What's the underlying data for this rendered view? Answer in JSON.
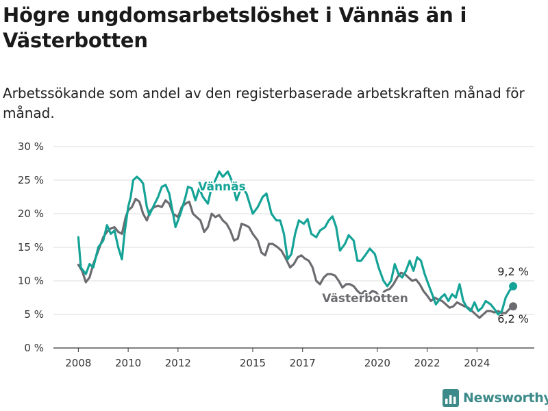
{
  "chart_data": {
    "type": "line",
    "title": "Högre ungdomsarbetslöshet i Vännäs än i Västerbotten",
    "subtitle": "Arbetssökande som andel av den registerbaserade arbetskraften månad för månad.",
    "xlabel": "",
    "ylabel": "",
    "ylim": [
      0,
      30
    ],
    "yticks": [
      0,
      5,
      10,
      15,
      20,
      25,
      30
    ],
    "ytick_labels": [
      "0 %",
      "5 %",
      "10 %",
      "15 %",
      "20 %",
      "25 %",
      "30 %"
    ],
    "xticks": [
      2008,
      2010,
      2012,
      2015,
      2017,
      2020,
      2022,
      2024
    ],
    "xtick_labels": [
      "2008",
      "2010",
      "2012",
      "2015",
      "2017",
      "2020",
      "2022",
      "2024"
    ],
    "grid": true,
    "colors": {
      "vannas": "#14a396",
      "vasterbotten": "#6b6b70",
      "grid": "#dcdcdc",
      "brand": "#3c8a8a"
    },
    "series": [
      {
        "name": "Vännäs",
        "color": "#14a396",
        "points": [
          [
            2008.0,
            16.5
          ],
          [
            2008.1,
            12.0
          ],
          [
            2008.3,
            11.0
          ],
          [
            2008.45,
            12.5
          ],
          [
            2008.6,
            12.0
          ],
          [
            2008.8,
            15.0
          ],
          [
            2009.0,
            16.0
          ],
          [
            2009.15,
            18.3
          ],
          [
            2009.3,
            17.0
          ],
          [
            2009.45,
            17.5
          ],
          [
            2009.6,
            15.0
          ],
          [
            2009.75,
            13.2
          ],
          [
            2009.85,
            17.0
          ],
          [
            2010.0,
            21.0
          ],
          [
            2010.1,
            22.5
          ],
          [
            2010.2,
            25.0
          ],
          [
            2010.35,
            25.5
          ],
          [
            2010.5,
            25.0
          ],
          [
            2010.6,
            24.5
          ],
          [
            2010.75,
            21.0
          ],
          [
            2010.85,
            19.8
          ],
          [
            2011.0,
            21.0
          ],
          [
            2011.2,
            22.5
          ],
          [
            2011.35,
            24.0
          ],
          [
            2011.5,
            24.3
          ],
          [
            2011.65,
            23.0
          ],
          [
            2011.8,
            20.0
          ],
          [
            2011.9,
            18.0
          ],
          [
            2012.1,
            20.0
          ],
          [
            2012.3,
            22.5
          ],
          [
            2012.4,
            24.0
          ],
          [
            2012.55,
            23.8
          ],
          [
            2012.7,
            22.0
          ],
          [
            2012.85,
            23.8
          ],
          [
            2013.0,
            22.5
          ],
          [
            2013.2,
            21.5
          ],
          [
            2013.35,
            24.0
          ],
          [
            2013.5,
            25.0
          ],
          [
            2013.65,
            26.3
          ],
          [
            2013.8,
            25.5
          ],
          [
            2014.0,
            26.3
          ],
          [
            2014.15,
            25.0
          ],
          [
            2014.35,
            22.0
          ],
          [
            2014.55,
            24.0
          ],
          [
            2014.75,
            23.0
          ],
          [
            2015.0,
            20.0
          ],
          [
            2015.2,
            21.0
          ],
          [
            2015.4,
            22.5
          ],
          [
            2015.55,
            23.0
          ],
          [
            2015.75,
            20.0
          ],
          [
            2015.95,
            19.0
          ],
          [
            2016.1,
            19.0
          ],
          [
            2016.25,
            17.0
          ],
          [
            2016.4,
            13.2
          ],
          [
            2016.55,
            14.0
          ],
          [
            2016.7,
            17.0
          ],
          [
            2016.85,
            19.0
          ],
          [
            2017.05,
            18.5
          ],
          [
            2017.2,
            19.2
          ],
          [
            2017.35,
            17.0
          ],
          [
            2017.55,
            16.5
          ],
          [
            2017.7,
            17.5
          ],
          [
            2017.9,
            18.0
          ],
          [
            2018.05,
            19.0
          ],
          [
            2018.2,
            19.6
          ],
          [
            2018.35,
            18.0
          ],
          [
            2018.5,
            14.5
          ],
          [
            2018.7,
            15.5
          ],
          [
            2018.85,
            16.8
          ],
          [
            2019.05,
            16.0
          ],
          [
            2019.2,
            13.0
          ],
          [
            2019.35,
            13.0
          ],
          [
            2019.55,
            14.0
          ],
          [
            2019.7,
            14.8
          ],
          [
            2019.9,
            14.0
          ],
          [
            2020.05,
            12.0
          ],
          [
            2020.25,
            10.0
          ],
          [
            2020.4,
            9.2
          ],
          [
            2020.55,
            10.0
          ],
          [
            2020.7,
            12.5
          ],
          [
            2020.85,
            11.0
          ],
          [
            2021.0,
            10.5
          ],
          [
            2021.15,
            11.5
          ],
          [
            2021.3,
            13.0
          ],
          [
            2021.45,
            11.5
          ],
          [
            2021.6,
            13.5
          ],
          [
            2021.75,
            13.0
          ],
          [
            2021.9,
            11.0
          ],
          [
            2022.05,
            9.5
          ],
          [
            2022.2,
            8.0
          ],
          [
            2022.35,
            6.5
          ],
          [
            2022.55,
            7.5
          ],
          [
            2022.7,
            8.0
          ],
          [
            2022.85,
            7.0
          ],
          [
            2023.0,
            8.0
          ],
          [
            2023.15,
            7.5
          ],
          [
            2023.3,
            9.5
          ],
          [
            2023.45,
            7.0
          ],
          [
            2023.6,
            6.0
          ],
          [
            2023.75,
            5.5
          ],
          [
            2023.9,
            6.8
          ],
          [
            2024.05,
            5.5
          ],
          [
            2024.2,
            6.0
          ],
          [
            2024.35,
            7.0
          ],
          [
            2024.55,
            6.5
          ],
          [
            2024.7,
            5.8
          ],
          [
            2024.85,
            5.0
          ],
          [
            2025.0,
            5.5
          ],
          [
            2025.15,
            7.5
          ],
          [
            2025.3,
            8.5
          ],
          [
            2025.45,
            9.2
          ]
        ]
      },
      {
        "name": "Västerbotten",
        "color": "#6b6b70",
        "points": [
          [
            2008.0,
            12.4
          ],
          [
            2008.15,
            11.5
          ],
          [
            2008.3,
            9.8
          ],
          [
            2008.45,
            10.5
          ],
          [
            2008.6,
            12.5
          ],
          [
            2008.8,
            14.5
          ],
          [
            2009.0,
            16.5
          ],
          [
            2009.15,
            17.3
          ],
          [
            2009.3,
            17.8
          ],
          [
            2009.45,
            18.0
          ],
          [
            2009.6,
            17.3
          ],
          [
            2009.75,
            17.0
          ],
          [
            2009.9,
            19.5
          ],
          [
            2010.0,
            20.5
          ],
          [
            2010.15,
            21.0
          ],
          [
            2010.3,
            22.2
          ],
          [
            2010.45,
            21.8
          ],
          [
            2010.6,
            20.0
          ],
          [
            2010.75,
            19.0
          ],
          [
            2010.9,
            20.5
          ],
          [
            2011.05,
            21.0
          ],
          [
            2011.2,
            21.2
          ],
          [
            2011.35,
            21.0
          ],
          [
            2011.5,
            22.0
          ],
          [
            2011.65,
            21.5
          ],
          [
            2011.8,
            20.0
          ],
          [
            2012.0,
            19.5
          ],
          [
            2012.15,
            21.0
          ],
          [
            2012.3,
            21.5
          ],
          [
            2012.45,
            21.8
          ],
          [
            2012.6,
            20.0
          ],
          [
            2012.75,
            19.5
          ],
          [
            2012.9,
            19.0
          ],
          [
            2013.05,
            17.3
          ],
          [
            2013.2,
            18.0
          ],
          [
            2013.35,
            20.0
          ],
          [
            2013.5,
            19.5
          ],
          [
            2013.65,
            19.8
          ],
          [
            2013.8,
            19.0
          ],
          [
            2013.95,
            18.5
          ],
          [
            2014.1,
            17.5
          ],
          [
            2014.25,
            16.0
          ],
          [
            2014.4,
            16.3
          ],
          [
            2014.55,
            18.5
          ],
          [
            2014.7,
            18.3
          ],
          [
            2014.85,
            18.0
          ],
          [
            2015.0,
            17.0
          ],
          [
            2015.2,
            16.0
          ],
          [
            2015.35,
            14.2
          ],
          [
            2015.5,
            13.8
          ],
          [
            2015.65,
            15.5
          ],
          [
            2015.8,
            15.5
          ],
          [
            2016.0,
            15.0
          ],
          [
            2016.15,
            14.5
          ],
          [
            2016.3,
            13.5
          ],
          [
            2016.5,
            12.0
          ],
          [
            2016.65,
            12.5
          ],
          [
            2016.8,
            13.5
          ],
          [
            2016.95,
            13.8
          ],
          [
            2017.1,
            13.3
          ],
          [
            2017.25,
            13.0
          ],
          [
            2017.4,
            12.0
          ],
          [
            2017.55,
            10.0
          ],
          [
            2017.7,
            9.5
          ],
          [
            2017.85,
            10.5
          ],
          [
            2018.0,
            11.0
          ],
          [
            2018.15,
            11.0
          ],
          [
            2018.3,
            10.8
          ],
          [
            2018.45,
            10.0
          ],
          [
            2018.6,
            9.0
          ],
          [
            2018.75,
            9.5
          ],
          [
            2018.9,
            9.5
          ],
          [
            2019.05,
            9.2
          ],
          [
            2019.2,
            8.5
          ],
          [
            2019.35,
            8.0
          ],
          [
            2019.5,
            8.5
          ],
          [
            2019.65,
            8.0
          ],
          [
            2019.8,
            8.5
          ],
          [
            2019.95,
            8.3
          ],
          [
            2020.1,
            7.6
          ],
          [
            2020.3,
            8.5
          ],
          [
            2020.5,
            8.8
          ],
          [
            2020.65,
            9.5
          ],
          [
            2020.8,
            10.5
          ],
          [
            2020.95,
            11.2
          ],
          [
            2021.1,
            11.0
          ],
          [
            2021.25,
            10.5
          ],
          [
            2021.4,
            10.0
          ],
          [
            2021.55,
            10.2
          ],
          [
            2021.7,
            9.5
          ],
          [
            2021.85,
            8.5
          ],
          [
            2022.0,
            7.8
          ],
          [
            2022.15,
            7.0
          ],
          [
            2022.3,
            7.5
          ],
          [
            2022.45,
            7.2
          ],
          [
            2022.6,
            7.0
          ],
          [
            2022.75,
            6.5
          ],
          [
            2022.9,
            6.0
          ],
          [
            2023.05,
            6.2
          ],
          [
            2023.2,
            6.8
          ],
          [
            2023.35,
            6.5
          ],
          [
            2023.5,
            6.2
          ],
          [
            2023.65,
            6.0
          ],
          [
            2023.8,
            5.5
          ],
          [
            2023.95,
            5.0
          ],
          [
            2024.1,
            4.5
          ],
          [
            2024.25,
            5.0
          ],
          [
            2024.4,
            5.5
          ],
          [
            2024.55,
            5.5
          ],
          [
            2024.7,
            5.3
          ],
          [
            2024.85,
            5.5
          ],
          [
            2025.0,
            5.2
          ],
          [
            2025.15,
            5.2
          ],
          [
            2025.3,
            5.8
          ],
          [
            2025.45,
            6.2
          ]
        ]
      }
    ],
    "series_labels": {
      "vannas": "Vännäs",
      "vasterbotten": "Västerbotten"
    },
    "end_labels": {
      "vannas": "9,2 %",
      "vasterbotten": "6,2 %"
    }
  },
  "brand": {
    "name": "Newsworthy",
    "icon": "bar-chart-logo-icon"
  }
}
